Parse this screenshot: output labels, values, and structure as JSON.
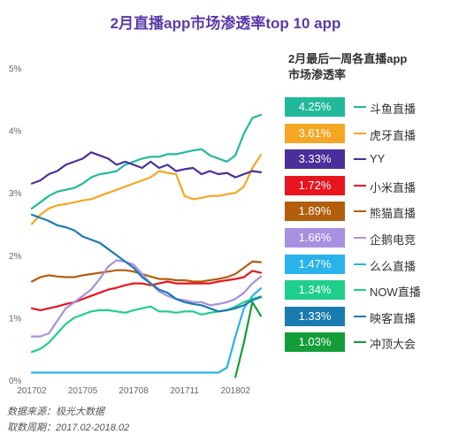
{
  "title": "2月直播app市场渗透率top 10 app",
  "legend_title_line1": "2月最后一周各直播app",
  "legend_title_line2": "市场渗透率",
  "footer": {
    "source": "数据来源：极光大数据",
    "period": "取数周期：2017.02-2018.02"
  },
  "chart_data": {
    "type": "line",
    "x_ticks": [
      "201702",
      "201705",
      "201708",
      "201711",
      "201802"
    ],
    "y_ticks": [
      "0%",
      "1%",
      "2%",
      "3%",
      "4%",
      "5%"
    ],
    "ylim": [
      0,
      5
    ],
    "grid": false,
    "legend_placement": "right",
    "series": [
      {
        "name": "斗鱼直播",
        "last_value": "4.25%",
        "color": "#21b99a",
        "values": [
          2.75,
          2.85,
          2.95,
          3.02,
          3.05,
          3.08,
          3.15,
          3.25,
          3.3,
          3.32,
          3.35,
          3.45,
          3.5,
          3.55,
          3.58,
          3.58,
          3.62,
          3.62,
          3.65,
          3.68,
          3.7,
          3.6,
          3.55,
          3.5,
          3.6,
          3.95,
          4.2,
          4.25
        ]
      },
      {
        "name": "虎牙直播",
        "last_value": "3.61%",
        "color": "#f5a623",
        "values": [
          2.5,
          2.65,
          2.75,
          2.8,
          2.82,
          2.85,
          2.88,
          2.9,
          2.95,
          3.0,
          3.05,
          3.1,
          3.15,
          3.2,
          3.25,
          3.35,
          3.32,
          3.3,
          2.95,
          2.9,
          2.92,
          2.95,
          2.95,
          2.98,
          3.0,
          3.1,
          3.4,
          3.61
        ]
      },
      {
        "name": "YY",
        "last_value": "3.33%",
        "color": "#4a2f9a",
        "values": [
          3.15,
          3.2,
          3.3,
          3.35,
          3.45,
          3.5,
          3.55,
          3.65,
          3.6,
          3.55,
          3.45,
          3.5,
          3.45,
          3.4,
          3.5,
          3.4,
          3.45,
          3.35,
          3.38,
          3.4,
          3.3,
          3.35,
          3.3,
          3.32,
          3.25,
          3.3,
          3.35,
          3.33
        ]
      },
      {
        "name": "小米直播",
        "last_value": "1.72%",
        "color": "#e8141e",
        "values": [
          1.15,
          1.12,
          1.15,
          1.18,
          1.22,
          1.25,
          1.3,
          1.35,
          1.4,
          1.45,
          1.48,
          1.52,
          1.55,
          1.55,
          1.52,
          1.55,
          1.58,
          1.55,
          1.55,
          1.55,
          1.55,
          1.55,
          1.58,
          1.6,
          1.62,
          1.65,
          1.75,
          1.72
        ]
      },
      {
        "name": "熊猫直播",
        "last_value": "1.89%",
        "color": "#b35e0c",
        "values": [
          1.58,
          1.65,
          1.68,
          1.66,
          1.65,
          1.65,
          1.68,
          1.7,
          1.72,
          1.74,
          1.76,
          1.76,
          1.74,
          1.7,
          1.66,
          1.62,
          1.62,
          1.6,
          1.6,
          1.58,
          1.58,
          1.6,
          1.62,
          1.65,
          1.7,
          1.8,
          1.9,
          1.89
        ]
      },
      {
        "name": "企鹅电竞",
        "last_value": "1.66%",
        "color": "#a890e0",
        "values": [
          0.7,
          0.7,
          0.75,
          0.95,
          1.15,
          1.25,
          1.35,
          1.45,
          1.62,
          1.82,
          1.92,
          1.9,
          1.85,
          1.7,
          1.55,
          1.42,
          1.35,
          1.3,
          1.28,
          1.25,
          1.25,
          1.2,
          1.22,
          1.25,
          1.3,
          1.4,
          1.55,
          1.66
        ]
      },
      {
        "name": "么么直播",
        "last_value": "1.47%",
        "color": "#29b3ea",
        "values": [
          0.12,
          0.12,
          0.12,
          0.12,
          0.12,
          0.12,
          0.12,
          0.12,
          0.12,
          0.12,
          0.12,
          0.12,
          0.12,
          0.12,
          0.12,
          0.12,
          0.12,
          0.12,
          0.12,
          0.12,
          0.12,
          0.12,
          0.12,
          0.2,
          0.7,
          1.15,
          1.35,
          1.47
        ]
      },
      {
        "name": "NOW直播",
        "last_value": "1.34%",
        "color": "#1fcf8c",
        "values": [
          0.45,
          0.5,
          0.6,
          0.75,
          0.9,
          1.0,
          1.05,
          1.1,
          1.12,
          1.12,
          1.1,
          1.08,
          1.12,
          1.15,
          1.18,
          1.1,
          1.1,
          1.08,
          1.1,
          1.1,
          1.05,
          1.08,
          1.1,
          1.12,
          1.18,
          1.25,
          1.3,
          1.34
        ]
      },
      {
        "name": "映客直播",
        "last_value": "1.33%",
        "color": "#1a7bb0",
        "values": [
          2.65,
          2.6,
          2.55,
          2.48,
          2.45,
          2.4,
          2.3,
          2.25,
          2.2,
          2.1,
          2.0,
          1.9,
          1.8,
          1.65,
          1.55,
          1.45,
          1.4,
          1.3,
          1.25,
          1.22,
          1.2,
          1.15,
          1.1,
          1.12,
          1.15,
          1.2,
          1.28,
          1.33
        ]
      },
      {
        "name": "冲顶大会",
        "last_value": "1.03%",
        "color": "#139e3a",
        "values": [
          null,
          null,
          null,
          null,
          null,
          null,
          null,
          null,
          null,
          null,
          null,
          null,
          null,
          null,
          null,
          null,
          null,
          null,
          null,
          null,
          null,
          null,
          null,
          null,
          0.05,
          0.6,
          1.25,
          1.03
        ]
      }
    ]
  }
}
